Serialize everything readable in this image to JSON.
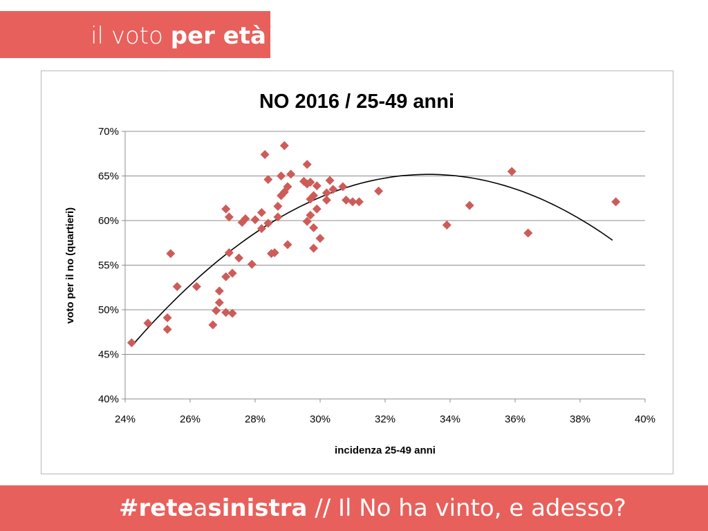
{
  "header": {
    "title_light": "il voto ",
    "title_bold": "per età"
  },
  "footer": {
    "hashtag_bold1": "#rete",
    "hashtag_light": "a",
    "hashtag_bold2": "sinistra",
    "rest": " // Il No ha vinto, e adesso?"
  },
  "colors": {
    "accent": "#e8605b",
    "marker": "#cd5c58",
    "gridline": "#8c8c8c",
    "trendline": "#000000"
  },
  "chart_data": {
    "type": "scatter",
    "title": "NO 2016 / 25-49 anni",
    "xlabel": "incidenza 25-49 anni",
    "ylabel": "voto per il no (quartieri)",
    "xlim": [
      24,
      40
    ],
    "ylim": [
      40,
      70
    ],
    "x_ticks": [
      24,
      26,
      28,
      30,
      32,
      34,
      36,
      38,
      40
    ],
    "x_tick_labels": [
      "24%",
      "26%",
      "28%",
      "30%",
      "32%",
      "34%",
      "36%",
      "38%",
      "40%"
    ],
    "y_ticks": [
      40,
      45,
      50,
      55,
      60,
      65,
      70
    ],
    "y_tick_labels": [
      "40%",
      "45%",
      "50%",
      "55%",
      "60%",
      "65%",
      "70%"
    ],
    "grid": "horizontal",
    "legend": "none",
    "marker": "diamond",
    "points": [
      [
        24.2,
        46.3
      ],
      [
        24.7,
        48.5
      ],
      [
        25.3,
        49.1
      ],
      [
        25.3,
        47.8
      ],
      [
        25.4,
        56.3
      ],
      [
        25.6,
        52.6
      ],
      [
        26.2,
        52.6
      ],
      [
        26.7,
        48.3
      ],
      [
        26.8,
        49.9
      ],
      [
        26.9,
        50.8
      ],
      [
        26.9,
        52.1
      ],
      [
        27.1,
        49.7
      ],
      [
        27.1,
        53.7
      ],
      [
        27.1,
        61.3
      ],
      [
        27.2,
        56.4
      ],
      [
        27.2,
        60.4
      ],
      [
        27.3,
        49.6
      ],
      [
        27.3,
        54.1
      ],
      [
        27.5,
        55.8
      ],
      [
        27.6,
        59.8
      ],
      [
        27.7,
        60.2
      ],
      [
        27.9,
        55.1
      ],
      [
        28.0,
        60.1
      ],
      [
        28.2,
        59.1
      ],
      [
        28.2,
        60.9
      ],
      [
        28.3,
        67.4
      ],
      [
        28.4,
        59.7
      ],
      [
        28.4,
        64.6
      ],
      [
        28.5,
        56.3
      ],
      [
        28.6,
        56.4
      ],
      [
        28.7,
        60.4
      ],
      [
        28.7,
        61.6
      ],
      [
        28.8,
        62.8
      ],
      [
        28.8,
        65.0
      ],
      [
        28.9,
        68.4
      ],
      [
        28.9,
        63.2
      ],
      [
        29.0,
        57.3
      ],
      [
        29.0,
        63.8
      ],
      [
        29.1,
        65.2
      ],
      [
        29.5,
        64.4
      ],
      [
        29.6,
        66.3
      ],
      [
        29.6,
        59.9
      ],
      [
        29.6,
        64.1
      ],
      [
        29.7,
        60.6
      ],
      [
        29.7,
        62.4
      ],
      [
        29.7,
        64.3
      ],
      [
        29.8,
        56.9
      ],
      [
        29.8,
        59.2
      ],
      [
        29.8,
        62.8
      ],
      [
        29.9,
        61.3
      ],
      [
        29.9,
        63.9
      ],
      [
        30.0,
        58.0
      ],
      [
        30.2,
        62.3
      ],
      [
        30.2,
        63.1
      ],
      [
        30.3,
        64.5
      ],
      [
        30.4,
        63.5
      ],
      [
        30.7,
        63.8
      ],
      [
        30.8,
        62.3
      ],
      [
        31.0,
        62.1
      ],
      [
        31.2,
        62.1
      ],
      [
        31.8,
        63.3
      ],
      [
        33.9,
        59.5
      ],
      [
        34.6,
        61.7
      ],
      [
        35.9,
        65.5
      ],
      [
        36.4,
        58.6
      ],
      [
        39.1,
        62.1
      ]
    ],
    "trendline": {
      "type": "polynomial",
      "order": 2,
      "x_range": [
        24.2,
        39.0
      ],
      "samples": [
        [
          24.2,
          45.7
        ],
        [
          25.0,
          49.3
        ],
        [
          26.0,
          53.0
        ],
        [
          28.0,
          58.5
        ],
        [
          30.0,
          62.5
        ],
        [
          32.0,
          64.7
        ],
        [
          33.4,
          65.1
        ],
        [
          35.0,
          64.6
        ],
        [
          37.0,
          62.4
        ],
        [
          39.0,
          57.6
        ]
      ]
    }
  }
}
